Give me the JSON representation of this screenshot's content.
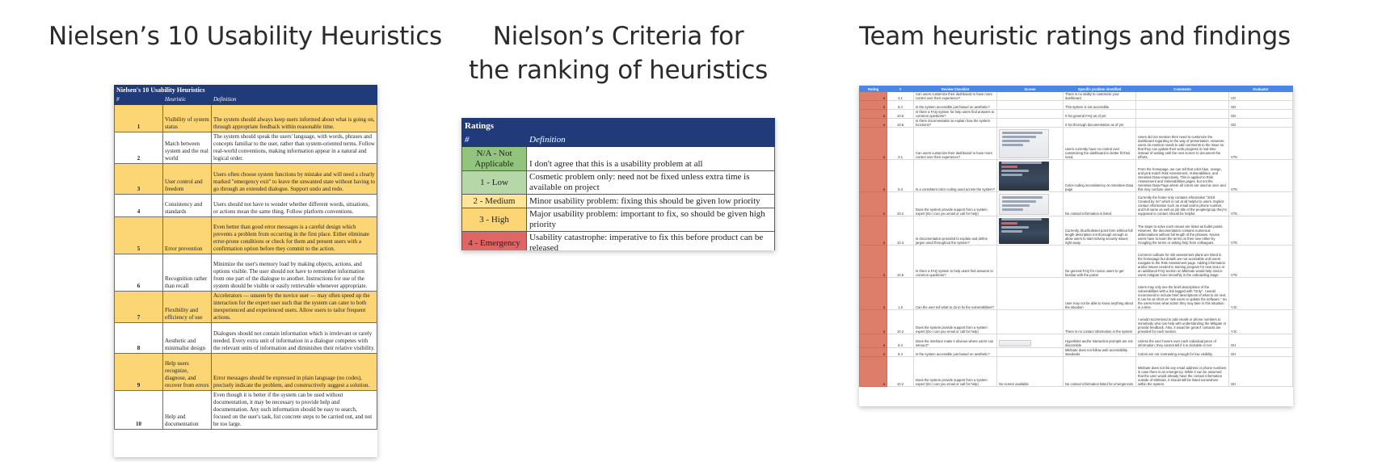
{
  "titles": {
    "nielsen": "Nielsen’s 10 Usability Heuristics",
    "criteria_line1": "Nielson’s Criteria for",
    "criteria_line2": "the ranking of heuristics",
    "team": "Team heuristic ratings and findings"
  },
  "nielsen_table": {
    "title": "Nielsen's 10 Usability Heuristics",
    "headers": [
      "#",
      "Heuristic",
      "Definition"
    ],
    "rows": [
      {
        "num": "1",
        "heuristic": "Visibility of system status",
        "definition": "The system should always keep users informed about what is going on, through appropriate feedback within reasonable time."
      },
      {
        "num": "2",
        "heuristic": "Match between system and the real world",
        "definition": "The system should speak the users' language, with words, phrases and concepts familiar to the user, rather than system-oriented terms. Follow real-world conventions, making information appear in a natural and logical order."
      },
      {
        "num": "3",
        "heuristic": "User control and freedom",
        "definition": "Users often choose system functions by mistake and will need a clearly marked \"emergency exit\" to leave the unwanted state without having to go through an extended dialogue. Support undo and redo."
      },
      {
        "num": "4",
        "heuristic": "Consistency and standards",
        "definition": "Users should not have to wonder whether different words, situations, or actions mean the same thing. Follow platform conventions."
      },
      {
        "num": "5",
        "heuristic": "Error prevention",
        "definition": "Even better than good error messages is a careful design which prevents a problem from occurring in the first place. Either eliminate error-prone conditions or check for them and present users with a confirmation option before they commit to the action."
      },
      {
        "num": "6",
        "heuristic": "Recognition rather than recall",
        "definition": "Minimize the user's memory load by making objects, actions, and options visible. The user should not have to remember information from one part of the dialogue to another. Instructions for use of the system should be visible or easily retrievable whenever appropriate."
      },
      {
        "num": "7",
        "heuristic": "Flexibility and efficiency of use",
        "definition": "Accelerators — unseen by the novice user — may often speed up the interaction for the expert user such that the system can cater to both inexperienced and experienced users. Allow users to tailor frequent actions."
      },
      {
        "num": "8",
        "heuristic": "Aesthetic and minimalist design",
        "definition": "Dialogues should not contain information which is irrelevant or rarely needed. Every extra unit of information in a dialogue competes with the relevant units of information and diminishes their relative visibility."
      },
      {
        "num": "9",
        "heuristic": "Help users recognize, diagnose, and recover from errors",
        "definition": "Error messages should be expressed in plain language (no codes), precisely indicate the problem, and constructively suggest a solution."
      },
      {
        "num": "10",
        "heuristic": "Help and documentation",
        "definition": "Even though it is better if the system can be used without documentation, it may be necessary to provide help and documentation. Any such information should be easy to search, focused on the user's task, list concrete steps to be carried out, and not be too large."
      }
    ]
  },
  "ratings_table": {
    "title": "Ratings",
    "headers": [
      "#",
      "Definition"
    ],
    "rows": [
      {
        "rating": "N/A - Not Applicable",
        "definition": "I don't agree that this is a usability problem at all",
        "color": "#93c47d"
      },
      {
        "rating": "1 - Low",
        "definition": "Cosmetic problem only: need not be fixed unless extra time is available on project",
        "color": "#b6d7a8"
      },
      {
        "rating": "2 - Medium",
        "definition": "Minor usability problem: fixing this should be given low priority",
        "color": "#ffe599"
      },
      {
        "rating": "3 - High",
        "definition": "Major usability problem: important to fix, so should be given high priority",
        "color": "#fcd574"
      },
      {
        "rating": "4 - Emergency",
        "definition": "Usability catastrophe: imperative to fix this before product can be released",
        "color": "#e06666"
      }
    ]
  },
  "team_sheet": {
    "headers": [
      "Rating",
      "#",
      "Review Checklist",
      "Screen",
      "Specific problem identified",
      "Comments",
      "Evaluator"
    ],
    "rows": [
      {
        "rating": "4",
        "num": "3.1",
        "checklist": "Can users customize their dashboard to have more control over their experience?",
        "screen": "",
        "problem": "There is no ability to customize your dashboard",
        "comments": "",
        "evaluator": "VO",
        "shot": ""
      },
      {
        "rating": "4",
        "num": "8.4",
        "checklist": "Is the system accessible just based on aesthetic?",
        "screen": "",
        "problem": "This system is not accessible",
        "comments": "",
        "evaluator": "GD",
        "shot": ""
      },
      {
        "rating": "4",
        "num": "10.5",
        "checklist": "Is there a FAQ system for help users find answers to common questions?",
        "screen": "",
        "problem": "0 No general FAQ as of yet",
        "comments": "",
        "evaluator": "GD",
        "shot": ""
      },
      {
        "rating": "4",
        "num": "10.6",
        "checklist": "Is there documentation to explain how the system functions?",
        "screen": "",
        "problem": "0 No thorough documentation as of yet",
        "comments": "",
        "evaluator": "GD",
        "shot": ""
      },
      {
        "rating": "4",
        "num": "3.1",
        "checklist": "Can users customize their dashboard to have more control over their experience?",
        "screen": "",
        "problem": "Users currently have no control over customizing the dashboard to better fit their need.",
        "comments": "Users did not mention their need to customize the dashboard regarding to the way of presentation. However, users do mention needs to add comments to the issue so that they can update their work progress in real-time instead of waiting until the next screen to document the efforts.",
        "evaluator": "VTK",
        "shot": "light"
      },
      {
        "rating": "4",
        "num": "5.3",
        "checklist": "Is a consistent color coding used across the system?",
        "screen": "",
        "problem": "Color-coding inconsistency on Sensitive Data page",
        "comments": "From the homepage, we can tell that color blue, orange, and pink match Risk Assessment, Vulnerabilities, and Sensitive Data respectively. This is applied to Risk Assessment and Vulnerabilities pages, but not the Sensitive Data Page where all colors are used at once and this may confuse users.",
        "evaluator": "VTK",
        "shot": "dark"
      },
      {
        "rating": "4",
        "num": "10.2",
        "checklist": "Does the system provide support from a system expert (Do I can you email or call for help)",
        "screen": "",
        "problem": "No contact information is listed",
        "comments": "Currently the footer only contains information \"2019 Created by 4A\" which is not at all helpful to users. Explicit contact information such as email and/or phone number, and full name as well as job title of the people/group they're supposed to contact should be helpful.",
        "evaluator": "VTK",
        "shot": "light"
      },
      {
        "rating": "4",
        "num": "10.4",
        "checklist": "Is documentation provided to explain and define jargon used throughout the system?",
        "screen": "",
        "problem": "Currently, blue/bulleted point form without full length description not thorough enough to allow users to start solving security issues right away",
        "comments": "The steps to solve each issues are listed as bullet points. However, the documentation contains numerous abbreviations without full length of the phrases. Novice users have to learn the terms on their own either by Googling the terms or asking help from colleagues.",
        "evaluator": "VTK",
        "shot": "dark"
      },
      {
        "rating": "4",
        "num": "10.5",
        "checklist": "Is there a FAQ system to help users find answers to common questions?",
        "screen": "",
        "problem": "No general FAQ for novice users to get familiar with the portal",
        "comments": "Common callouts for risk assessment plans are listed in the homepage but details are not accessible until users navigate to the Risk Assessment page. Adding information and/or issues needed in training program for new SULs or an additional FAQ section on MitiGate would help novice users mitigate more smoothly in the onboarding stage.",
        "evaluator": "VTK",
        "shot": ""
      },
      {
        "rating": "4",
        "num": "1.6",
        "checklist": "Can the user tell what to do to fix the vulnerabilities?",
        "screen": "",
        "problem": "User may not be able to know anything about the situation",
        "comments": "Users may only see the brief descriptions of the vulnerabilities with a link tagged with \"Only\". I would recommend to include brief descriptions of what to do next. It can be as short as \"ask users to update the software.\" So the users know what action they may take in this situation in a time.",
        "evaluator": "YJC",
        "shot": ""
      },
      {
        "rating": "4",
        "num": "10.2",
        "checklist": "Does the system provide support from a system expert (Do I can you email or call for help)",
        "screen": "",
        "problem": "There is no contact information in the system",
        "comments": "I would recommend to add emails or phone numbers to somebody who can help with understanding the Mitigate or provide feedback. Also, it would be great if contacts are provided for each section.",
        "evaluator": "YJC",
        "shot": ""
      },
      {
        "rating": "4",
        "num": "8.4",
        "checklist": "Does the interface make it obvious where users can interact?",
        "screen": "",
        "problem": "Hyperlinks and/or interaction prompts are not discernible",
        "comments": "Unless the user hovers over each individual piece of information, they cannot tell if it is clickable or not",
        "evaluator": "GH",
        "shot": "mini"
      },
      {
        "rating": "4",
        "num": "8.4",
        "checklist": "Is the system accessible just based on aesthetic?",
        "screen": "",
        "problem": "MitiGate does not follow web accessibility standards",
        "comments": "Colors are not contrasting enough for low visibility",
        "evaluator": "GH",
        "shot": ""
      },
      {
        "rating": "4",
        "num": "10.2",
        "checklist": "Does the system provide support from a system expert (Do I can you email or call for help)",
        "screen": "No screen available",
        "problem": "No contact information listed for emergencies",
        "comments": "MitiGate does not list any email address or phone numbers in case there is an emergency. While it can be assumed that the user would already have the contact information outside of MitiGate, it should still be listed somewhere within the system.",
        "evaluator": "GH",
        "shot": ""
      }
    ]
  }
}
